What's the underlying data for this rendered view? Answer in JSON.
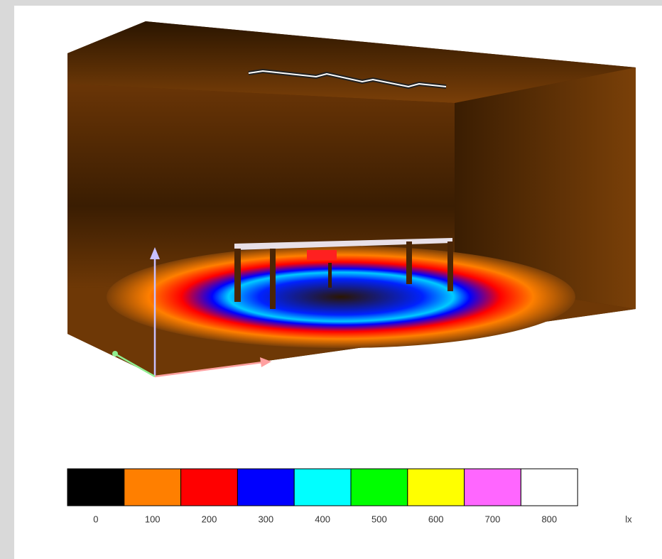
{
  "legend": {
    "unit": "lx",
    "steps": [
      {
        "value": 0,
        "color": "#000000"
      },
      {
        "value": 100,
        "color": "#ff7f00"
      },
      {
        "value": 200,
        "color": "#ff0000"
      },
      {
        "value": 300,
        "color": "#0000ff"
      },
      {
        "value": 400,
        "color": "#00ffff"
      },
      {
        "value": 500,
        "color": "#00ff00"
      },
      {
        "value": 600,
        "color": "#ffff00"
      },
      {
        "value": 700,
        "color": "#ff66ff"
      },
      {
        "value": 800,
        "color": "#ffffff"
      }
    ]
  }
}
